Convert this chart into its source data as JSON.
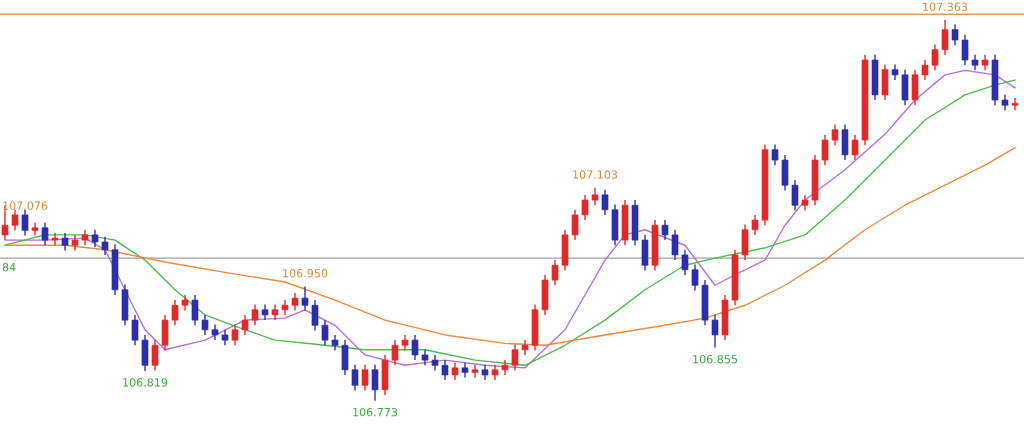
{
  "chart_data": {
    "type": "candlestick",
    "categories": [
      null,
      null,
      null,
      null,
      null,
      null,
      null,
      null,
      null,
      null,
      null,
      null,
      null,
      null,
      null,
      null,
      null,
      null,
      null,
      null,
      null,
      null,
      null,
      null,
      null,
      null,
      null,
      null,
      null,
      null,
      null,
      null,
      null,
      null,
      null,
      null,
      null,
      null,
      null,
      null,
      null,
      null,
      null,
      null,
      null,
      null,
      null,
      null,
      null,
      null,
      null,
      null,
      null,
      null,
      null,
      null,
      null,
      null,
      null,
      null,
      null,
      null,
      null,
      null,
      null,
      null,
      null,
      null,
      null,
      null,
      null,
      null,
      null,
      null,
      null,
      null,
      null,
      null,
      null,
      null,
      null,
      null,
      null,
      null,
      null,
      null,
      null,
      null,
      null,
      null,
      null,
      null,
      null,
      null,
      null,
      null,
      null,
      null,
      null,
      null,
      null,
      null
    ],
    "ohlc": [
      [
        107.03,
        107.076,
        107.022,
        107.045
      ],
      [
        107.045,
        107.069,
        107.037,
        107.061
      ],
      [
        107.061,
        107.069,
        107.029,
        107.037
      ],
      [
        107.037,
        107.049,
        107.029,
        107.041
      ],
      [
        107.041,
        107.049,
        107.014,
        107.022
      ],
      [
        107.022,
        107.033,
        107.014,
        107.025
      ],
      [
        107.025,
        107.033,
        107.006,
        107.014
      ],
      [
        107.014,
        107.03,
        107.006,
        107.022
      ],
      [
        107.022,
        107.038,
        107.014,
        107.03
      ],
      [
        107.03,
        107.038,
        107.011,
        107.019
      ],
      [
        107.019,
        107.027,
        106.999,
        107.007
      ],
      [
        107.007,
        107.015,
        106.937,
        106.945
      ],
      [
        106.945,
        106.953,
        106.89,
        106.898
      ],
      [
        106.898,
        106.906,
        106.859,
        106.867
      ],
      [
        106.867,
        106.875,
        106.819,
        106.828
      ],
      [
        106.828,
        106.867,
        106.82,
        106.859
      ],
      [
        106.859,
        106.906,
        106.851,
        106.898
      ],
      [
        106.898,
        106.929,
        106.89,
        106.921
      ],
      [
        106.921,
        106.937,
        106.913,
        106.929
      ],
      [
        106.929,
        106.937,
        106.89,
        106.898
      ],
      [
        106.898,
        106.906,
        106.875,
        106.883
      ],
      [
        106.883,
        106.891,
        106.867,
        106.875
      ],
      [
        106.875,
        106.883,
        106.859,
        106.867
      ],
      [
        106.867,
        106.891,
        106.859,
        106.883
      ],
      [
        106.883,
        106.906,
        106.875,
        106.898
      ],
      [
        106.898,
        106.922,
        106.89,
        106.914
      ],
      [
        106.914,
        106.922,
        106.898,
        106.906
      ],
      [
        106.906,
        106.922,
        106.898,
        106.914
      ],
      [
        106.914,
        106.929,
        106.906,
        106.921
      ],
      [
        106.921,
        106.94,
        106.913,
        106.932
      ],
      [
        106.932,
        106.95,
        106.913,
        106.921
      ],
      [
        106.921,
        106.929,
        106.882,
        106.89
      ],
      [
        106.89,
        106.898,
        106.859,
        106.867
      ],
      [
        106.867,
        106.875,
        106.851,
        106.859
      ],
      [
        106.859,
        106.867,
        106.813,
        106.821
      ],
      [
        106.821,
        106.829,
        106.789,
        106.797
      ],
      [
        106.797,
        106.829,
        106.789,
        106.821
      ],
      [
        106.821,
        106.829,
        106.773,
        106.79
      ],
      [
        106.79,
        106.844,
        106.782,
        106.836
      ],
      [
        106.836,
        106.867,
        106.828,
        106.859
      ],
      [
        106.859,
        106.875,
        106.851,
        106.867
      ],
      [
        106.867,
        106.875,
        106.836,
        106.844
      ],
      [
        106.844,
        106.852,
        106.828,
        106.836
      ],
      [
        106.836,
        106.844,
        106.82,
        106.828
      ],
      [
        106.828,
        106.836,
        106.805,
        106.813
      ],
      [
        106.813,
        106.832,
        106.805,
        106.824
      ],
      [
        106.824,
        106.832,
        106.809,
        106.817
      ],
      [
        106.817,
        106.829,
        106.809,
        106.821
      ],
      [
        106.821,
        106.829,
        106.805,
        106.813
      ],
      [
        106.813,
        106.829,
        106.805,
        106.821
      ],
      [
        106.821,
        106.836,
        106.813,
        106.828
      ],
      [
        106.828,
        106.86,
        106.82,
        106.852
      ],
      [
        106.852,
        106.867,
        106.844,
        106.859
      ],
      [
        106.859,
        106.922,
        106.851,
        106.914
      ],
      [
        106.914,
        106.968,
        106.906,
        106.96
      ],
      [
        106.96,
        106.991,
        106.952,
        106.983
      ],
      [
        106.983,
        107.038,
        106.975,
        107.03
      ],
      [
        107.03,
        107.069,
        107.022,
        107.061
      ],
      [
        107.061,
        107.092,
        107.053,
        107.084
      ],
      [
        107.084,
        107.103,
        107.076,
        107.092
      ],
      [
        107.092,
        107.1,
        107.061,
        107.069
      ],
      [
        107.069,
        107.077,
        107.014,
        107.022
      ],
      [
        107.022,
        107.084,
        107.014,
        107.076
      ],
      [
        107.076,
        107.084,
        107.014,
        107.022
      ],
      [
        107.022,
        107.03,
        106.975,
        106.983
      ],
      [
        106.983,
        107.053,
        106.975,
        107.045
      ],
      [
        107.045,
        107.053,
        107.022,
        107.03
      ],
      [
        107.03,
        107.038,
        106.991,
        106.999
      ],
      [
        106.999,
        107.007,
        106.968,
        106.976
      ],
      [
        106.976,
        106.984,
        106.944,
        106.952
      ],
      [
        106.952,
        106.96,
        106.89,
        106.898
      ],
      [
        106.898,
        106.906,
        106.855,
        106.875
      ],
      [
        106.875,
        106.937,
        106.867,
        106.929
      ],
      [
        106.929,
        107.007,
        106.921,
        106.999
      ],
      [
        106.999,
        107.046,
        106.991,
        107.038
      ],
      [
        107.038,
        107.061,
        107.03,
        107.053
      ],
      [
        107.053,
        107.17,
        107.045,
        107.162
      ],
      [
        107.162,
        107.17,
        107.138,
        107.146
      ],
      [
        107.146,
        107.154,
        107.099,
        107.107
      ],
      [
        107.107,
        107.115,
        107.068,
        107.076
      ],
      [
        107.076,
        107.092,
        107.068,
        107.084
      ],
      [
        107.084,
        107.154,
        107.076,
        107.146
      ],
      [
        107.146,
        107.185,
        107.138,
        107.177
      ],
      [
        107.177,
        107.201,
        107.169,
        107.193
      ],
      [
        107.193,
        107.201,
        107.146,
        107.154
      ],
      [
        107.154,
        107.185,
        107.146,
        107.177
      ],
      [
        107.177,
        107.309,
        107.169,
        107.301
      ],
      [
        107.301,
        107.309,
        107.239,
        107.247
      ],
      [
        107.247,
        107.294,
        107.239,
        107.286
      ],
      [
        107.286,
        107.294,
        107.27,
        107.278
      ],
      [
        107.278,
        107.286,
        107.231,
        107.239
      ],
      [
        107.239,
        107.286,
        107.231,
        107.278
      ],
      [
        107.278,
        107.301,
        107.27,
        107.293
      ],
      [
        107.293,
        107.325,
        107.285,
        107.317
      ],
      [
        107.317,
        107.363,
        107.309,
        107.348
      ],
      [
        107.348,
        107.356,
        107.324,
        107.332
      ],
      [
        107.332,
        107.34,
        107.293,
        107.301
      ],
      [
        107.301,
        107.309,
        107.285,
        107.293
      ],
      [
        107.293,
        107.309,
        107.285,
        107.301
      ],
      [
        107.301,
        107.309,
        107.231,
        107.239
      ],
      [
        107.239,
        107.247,
        107.223,
        107.231
      ],
      [
        107.231,
        107.242,
        107.223,
        107.234
      ]
    ],
    "series": [
      {
        "type": "line",
        "color": "#b46fdc",
        "values": [
          107.022,
          null,
          null,
          null,
          107.022,
          null,
          null,
          null,
          107.025,
          null,
          107.007,
          null,
          106.945,
          null,
          106.883,
          null,
          106.852,
          null,
          null,
          null,
          106.867,
          null,
          null,
          null,
          106.898,
          null,
          null,
          null,
          106.901,
          null,
          106.914,
          null,
          null,
          106.89,
          null,
          null,
          106.844,
          null,
          null,
          null,
          106.828,
          null,
          null,
          null,
          106.836,
          null,
          null,
          null,
          106.828,
          null,
          null,
          null,
          106.824,
          null,
          null,
          null,
          106.883,
          null,
          null,
          null,
          106.991,
          null,
          107.03,
          null,
          107.038,
          null,
          null,
          null,
          107.014,
          null,
          null,
          106.952,
          null,
          106.968,
          null,
          null,
          106.991,
          null,
          107.045,
          null,
          107.084,
          null,
          null,
          null,
          107.131,
          null,
          null,
          null,
          107.186,
          null,
          null,
          107.239,
          null,
          null,
          107.278,
          null,
          107.285,
          null,
          null,
          107.278,
          null,
          107.258
        ]
      },
      {
        "type": "line",
        "color": "#4cbb4c",
        "values": [
          107.014,
          null,
          null,
          null,
          107.03,
          null,
          null,
          null,
          107.03,
          null,
          null,
          107.022,
          null,
          null,
          106.991,
          null,
          null,
          106.945,
          null,
          null,
          106.906,
          null,
          null,
          null,
          106.883,
          null,
          null,
          106.867,
          null,
          null,
          null,
          null,
          106.859,
          null,
          null,
          null,
          106.852,
          null,
          null,
          null,
          null,
          null,
          106.852,
          null,
          null,
          null,
          null,
          106.836,
          null,
          null,
          null,
          null,
          106.828,
          null,
          null,
          null,
          106.859,
          null,
          null,
          null,
          106.898,
          null,
          null,
          null,
          106.945,
          null,
          null,
          null,
          106.983,
          null,
          null,
          106.994,
          null,
          null,
          null,
          null,
          107.01,
          null,
          null,
          null,
          107.03,
          null,
          null,
          null,
          107.084,
          null,
          null,
          null,
          107.146,
          null,
          null,
          null,
          107.208,
          null,
          null,
          null,
          107.247,
          null,
          null,
          107.262,
          null,
          107.27
        ]
      },
      {
        "type": "line",
        "color": "#f0893c",
        "values": [
          107.014,
          null,
          null,
          null,
          null,
          null,
          107.014,
          null,
          null,
          null,
          107.007,
          null,
          null,
          null,
          null,
          null,
          106.988,
          null,
          null,
          null,
          null,
          null,
          106.972,
          null,
          null,
          null,
          null,
          null,
          106.957,
          null,
          null,
          null,
          null,
          106.929,
          null,
          null,
          null,
          null,
          106.898,
          null,
          null,
          null,
          null,
          null,
          106.875,
          null,
          null,
          null,
          null,
          null,
          106.862,
          null,
          null,
          null,
          106.859,
          null,
          null,
          null,
          null,
          null,
          106.875,
          null,
          null,
          null,
          null,
          null,
          106.89,
          null,
          null,
          null,
          106.901,
          null,
          null,
          null,
          106.921,
          null,
          null,
          null,
          106.952,
          null,
          null,
          null,
          106.991,
          null,
          null,
          null,
          107.038,
          null,
          null,
          null,
          107.076,
          null,
          null,
          null,
          107.107,
          null,
          null,
          null,
          107.138,
          null,
          null,
          107.165
        ]
      }
    ],
    "ref_lines": [
      {
        "axis": "y",
        "value": 107.372,
        "color": "#e0a050"
      },
      {
        "axis": "y",
        "value": 106.994,
        "color": "#a0a0a0"
      }
    ],
    "annotations": [
      "107.076",
      {
        "text": "106.819",
        "y": 106.819
      },
      {
        "text": "106.950",
        "y": 106.95
      },
      {
        "text": "106.773",
        "y": 106.773
      },
      {
        "text": "107.103",
        "y": 107.103
      },
      {
        "text": "106.855",
        "y": 106.855
      },
      {
        "text": "107.363",
        "y": 107.363
      },
      "84"
    ],
    "ylim": [
      106.737,
      107.394
    ],
    "tick_labels": false
  }
}
